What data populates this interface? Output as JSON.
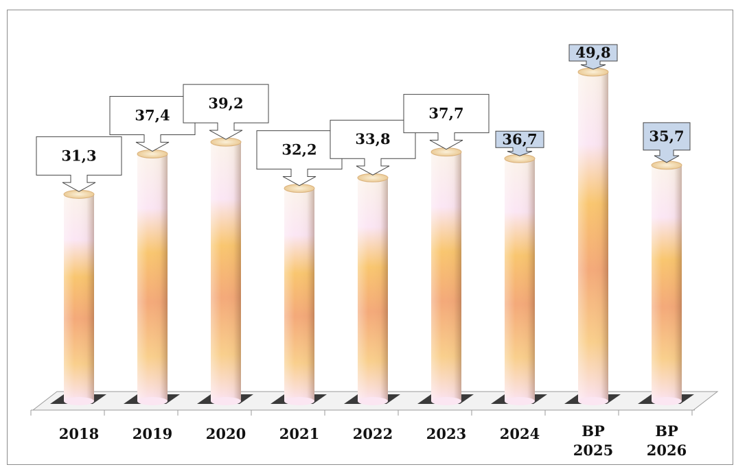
{
  "chart_data": {
    "type": "bar",
    "categories": [
      [
        "2018"
      ],
      [
        "2019"
      ],
      [
        "2020"
      ],
      [
        "2021"
      ],
      [
        "2022"
      ],
      [
        "2023"
      ],
      [
        "2024"
      ],
      [
        "BP",
        "2025"
      ],
      [
        "BP",
        "2026"
      ]
    ],
    "values": [
      31.3,
      37.4,
      39.2,
      32.2,
      33.8,
      37.7,
      36.7,
      49.8,
      35.7
    ],
    "value_labels": [
      "31,3",
      "37,4",
      "39,2",
      "32,2",
      "33,8",
      "37,7",
      "36,7",
      "49,8",
      "35,7"
    ],
    "callout_style": [
      "white",
      "white",
      "white",
      "white",
      "white",
      "white",
      "blue",
      "blue",
      "blue"
    ],
    "title": "",
    "xlabel": "",
    "ylabel": "",
    "ylim": [
      0,
      52
    ],
    "grid": false,
    "legend": "none",
    "colors": {
      "bar_top": "#f7efe6",
      "bar_light": "#fbe8f4",
      "bar_mid": "#f9c777",
      "bar_dark": "#f3a774",
      "callout_white": "#ffffff",
      "callout_blue": "#c7d6ea",
      "floor_shadow": "#1a1a1a"
    }
  }
}
